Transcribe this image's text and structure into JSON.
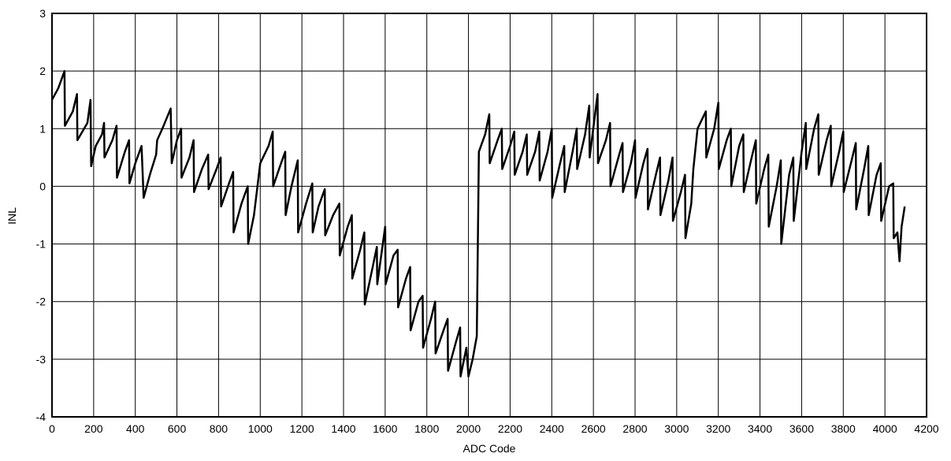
{
  "chart_data": {
    "type": "line",
    "x_label": "ADC Code",
    "y_label": "INL",
    "xlim": [
      0,
      4200
    ],
    "ylim": [
      -4,
      3
    ],
    "xticks": [
      0,
      200,
      400,
      600,
      800,
      1000,
      1200,
      1400,
      1600,
      1800,
      2000,
      2200,
      2400,
      2600,
      2800,
      3000,
      3200,
      3400,
      3600,
      3800,
      4000,
      4200
    ],
    "yticks": [
      -4,
      -3,
      -2,
      -1,
      0,
      1,
      2,
      3
    ],
    "grid": true,
    "series": [
      {
        "color": "#000000",
        "x": [
          0,
          30,
          60,
          62,
          100,
          120,
          122,
          170,
          185,
          188,
          210,
          240,
          250,
          252,
          290,
          310,
          312,
          350,
          370,
          372,
          400,
          430,
          440,
          470,
          500,
          505,
          530,
          570,
          575,
          600,
          620,
          622,
          660,
          680,
          682,
          720,
          750,
          752,
          790,
          810,
          812,
          850,
          870,
          872,
          910,
          940,
          942,
          970,
          1000,
          1040,
          1060,
          1062,
          1100,
          1120,
          1122,
          1150,
          1180,
          1182,
          1220,
          1250,
          1252,
          1280,
          1310,
          1312,
          1350,
          1380,
          1382,
          1420,
          1440,
          1442,
          1480,
          1500,
          1502,
          1540,
          1560,
          1562,
          1600,
          1602,
          1640,
          1660,
          1662,
          1700,
          1720,
          1722,
          1760,
          1780,
          1782,
          1820,
          1840,
          1842,
          1880,
          1900,
          1902,
          1940,
          1960,
          1962,
          1990,
          2000,
          2020,
          2040,
          2050,
          2080,
          2100,
          2102,
          2140,
          2160,
          2162,
          2200,
          2220,
          2222,
          2260,
          2280,
          2282,
          2320,
          2340,
          2342,
          2380,
          2400,
          2402,
          2440,
          2460,
          2462,
          2500,
          2520,
          2522,
          2560,
          2580,
          2582,
          2620,
          2622,
          2660,
          2680,
          2682,
          2720,
          2740,
          2742,
          2780,
          2800,
          2802,
          2840,
          2860,
          2862,
          2900,
          2920,
          2922,
          2960,
          2980,
          2982,
          3020,
          3040,
          3042,
          3070,
          3080,
          3100,
          3140,
          3142,
          3180,
          3200,
          3202,
          3240,
          3260,
          3262,
          3300,
          3320,
          3322,
          3360,
          3380,
          3382,
          3420,
          3440,
          3442,
          3480,
          3500,
          3502,
          3540,
          3560,
          3562,
          3600,
          3620,
          3622,
          3660,
          3680,
          3682,
          3720,
          3740,
          3742,
          3780,
          3800,
          3802,
          3840,
          3860,
          3862,
          3900,
          3920,
          3922,
          3960,
          3980,
          3982,
          4020,
          4040,
          4042,
          4060,
          4070,
          4080,
          4095
        ],
        "values": [
          1.5,
          1.7,
          2.0,
          1.05,
          1.3,
          1.6,
          0.8,
          1.1,
          1.5,
          0.35,
          0.7,
          0.9,
          1.1,
          0.5,
          0.8,
          1.05,
          0.15,
          0.6,
          0.8,
          0.05,
          0.4,
          0.7,
          -0.2,
          0.2,
          0.55,
          0.8,
          1.0,
          1.35,
          0.4,
          0.8,
          1.0,
          0.15,
          0.5,
          0.8,
          -0.1,
          0.3,
          0.55,
          -0.05,
          0.3,
          0.5,
          -0.35,
          0.05,
          0.25,
          -0.8,
          -0.3,
          0.0,
          -1.0,
          -0.5,
          0.4,
          0.7,
          0.95,
          0.0,
          0.4,
          0.6,
          -0.5,
          0.0,
          0.45,
          -0.8,
          -0.3,
          0.05,
          -0.8,
          -0.35,
          -0.05,
          -0.85,
          -0.5,
          -0.3,
          -1.2,
          -0.7,
          -0.5,
          -1.6,
          -1.1,
          -0.8,
          -2.05,
          -1.4,
          -1.05,
          -1.7,
          -0.7,
          -1.7,
          -1.2,
          -1.1,
          -2.1,
          -1.6,
          -1.4,
          -2.5,
          -2.0,
          -1.9,
          -2.8,
          -2.3,
          -2.0,
          -2.9,
          -2.5,
          -2.3,
          -3.2,
          -2.7,
          -2.45,
          -3.3,
          -2.8,
          -3.3,
          -3.0,
          -2.6,
          0.6,
          0.9,
          1.25,
          0.4,
          0.8,
          1.0,
          0.3,
          0.7,
          0.95,
          0.2,
          0.6,
          0.9,
          0.2,
          0.6,
          0.95,
          0.1,
          0.6,
          1.0,
          -0.2,
          0.4,
          0.7,
          -0.1,
          0.6,
          1.0,
          0.3,
          0.9,
          1.4,
          0.5,
          1.6,
          0.4,
          0.8,
          1.1,
          0.0,
          0.5,
          0.75,
          -0.1,
          0.4,
          0.8,
          -0.2,
          0.4,
          0.65,
          -0.4,
          0.2,
          0.5,
          -0.5,
          0.1,
          0.5,
          -0.6,
          -0.1,
          0.2,
          -0.9,
          -0.3,
          0.3,
          1.0,
          1.3,
          0.5,
          1.0,
          1.45,
          0.3,
          0.8,
          1.0,
          0.0,
          0.7,
          0.9,
          -0.1,
          0.5,
          0.8,
          -0.3,
          0.3,
          0.55,
          -0.7,
          0.0,
          0.45,
          -1.0,
          0.2,
          0.5,
          -0.6,
          0.6,
          1.1,
          0.3,
          1.0,
          1.25,
          0.2,
          0.8,
          1.05,
          0.0,
          0.6,
          0.95,
          -0.1,
          0.45,
          0.75,
          -0.4,
          0.3,
          0.7,
          -0.5,
          0.2,
          0.4,
          -0.6,
          0.0,
          0.05,
          -0.9,
          -0.8,
          -1.3,
          -0.7,
          -0.35
        ]
      }
    ]
  }
}
